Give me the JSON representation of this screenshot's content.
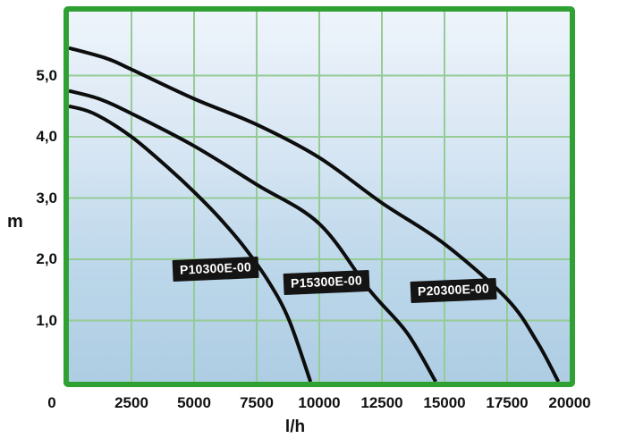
{
  "chart_data": {
    "type": "line",
    "title": "",
    "xlabel": "l/h",
    "ylabel": "m",
    "xlim": [
      0,
      20000
    ],
    "ylim": [
      0,
      6.05
    ],
    "grid": true,
    "legend_position": "labels-on-curves",
    "x_ticks": [
      {
        "value": 0,
        "label": "0"
      },
      {
        "value": 2500,
        "label": "2500"
      },
      {
        "value": 5000,
        "label": "5000"
      },
      {
        "value": 7500,
        "label": "7500"
      },
      {
        "value": 10000,
        "label": "10000"
      },
      {
        "value": 12500,
        "label": "12500"
      },
      {
        "value": 15000,
        "label": "15000"
      },
      {
        "value": 17500,
        "label": "17500"
      },
      {
        "value": 20000,
        "label": "20000"
      }
    ],
    "y_ticks": [
      {
        "value": 1,
        "label": "1,0"
      },
      {
        "value": 2,
        "label": "2,0"
      },
      {
        "value": 3,
        "label": "3,0"
      },
      {
        "value": 4,
        "label": "4,0"
      },
      {
        "value": 5,
        "label": "5,0"
      }
    ],
    "series": [
      {
        "name": "P10300E-00",
        "max_head_m": 4.5,
        "max_flow_lh": 9650,
        "label_anchor": [
          5850,
          1.84
        ],
        "points": [
          [
            0,
            4.5
          ],
          [
            1000,
            4.38
          ],
          [
            2500,
            4.0
          ],
          [
            4000,
            3.48
          ],
          [
            5000,
            3.1
          ],
          [
            6000,
            2.68
          ],
          [
            7000,
            2.2
          ],
          [
            8000,
            1.62
          ],
          [
            8800,
            1.0
          ],
          [
            9650,
            0
          ]
        ]
      },
      {
        "name": "P15300E-00",
        "max_head_m": 4.75,
        "max_flow_lh": 14650,
        "label_anchor": [
          10300,
          1.62
        ],
        "points": [
          [
            0,
            4.75
          ],
          [
            1200,
            4.62
          ],
          [
            2500,
            4.38
          ],
          [
            5000,
            3.85
          ],
          [
            7500,
            3.22
          ],
          [
            10000,
            2.58
          ],
          [
            12000,
            1.5
          ],
          [
            13500,
            0.8
          ],
          [
            14650,
            0
          ]
        ]
      },
      {
        "name": "P20300E-00",
        "max_head_m": 5.45,
        "max_flow_lh": 19550,
        "label_anchor": [
          15350,
          1.49
        ],
        "points": [
          [
            0,
            5.45
          ],
          [
            1500,
            5.28
          ],
          [
            2500,
            5.1
          ],
          [
            5000,
            4.62
          ],
          [
            7500,
            4.2
          ],
          [
            10000,
            3.66
          ],
          [
            12500,
            2.92
          ],
          [
            15000,
            2.25
          ],
          [
            17500,
            1.35
          ],
          [
            18700,
            0.65
          ],
          [
            19550,
            0
          ]
        ]
      }
    ]
  },
  "colors": {
    "frame_green": "#2fa133",
    "grid_green": "#95cb95",
    "background_top": "#eef4fb",
    "background_bottom": "#aecde3",
    "curve_black": "#0d0d0d",
    "chip_background": "#141414",
    "chip_text": "#ffffff",
    "axis_text": "#111111"
  }
}
